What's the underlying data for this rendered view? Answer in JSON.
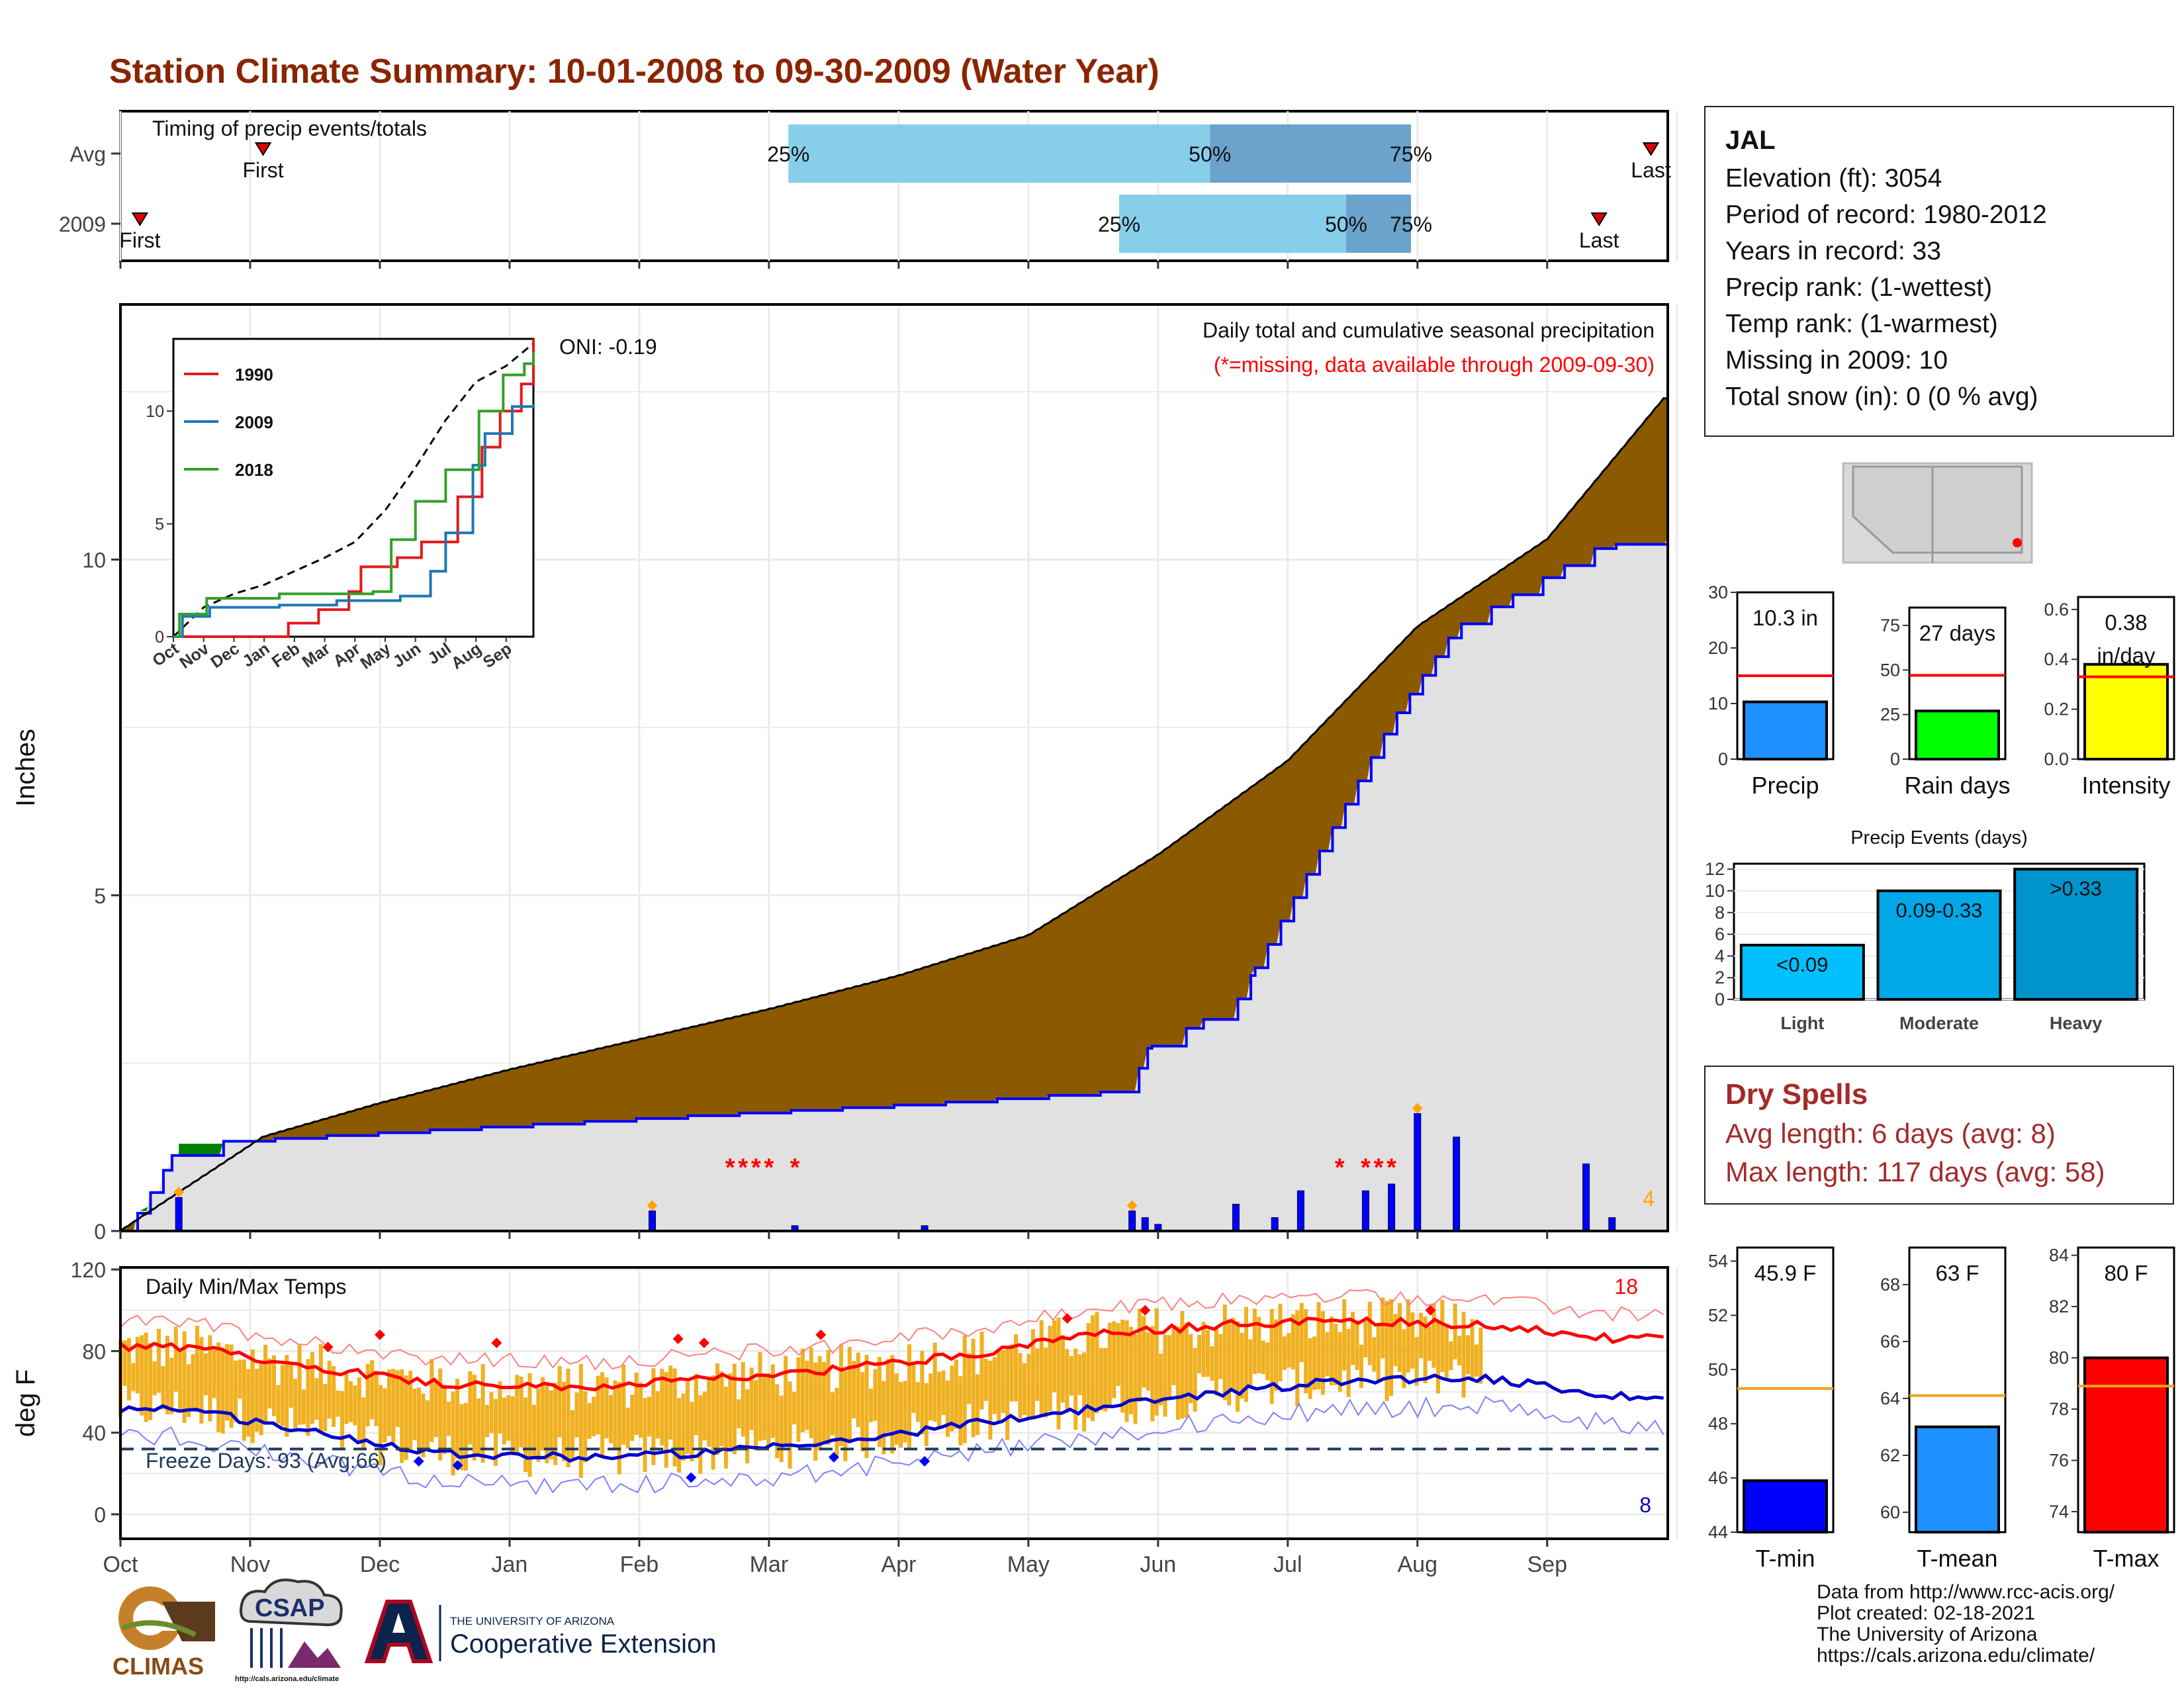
{
  "title": "Station Climate Summary: 10-01-2008 to 09-30-2009 (Water Year)",
  "colors": {
    "title": "#8b2500",
    "bar_light": "#87ceeb",
    "bar_dark": "#6ba3cc",
    "cumulative_above": "#8b5a00",
    "cumulative_below": "#008000",
    "cumulative_fill": "#e1e1e1",
    "daily_precip": "#0000ff",
    "missing": "#ff0000",
    "temp_bar": "#f0b020",
    "tmax": "#ff0000",
    "tmin": "#0000cc",
    "avg_line": "#f7a11a"
  },
  "timing": {
    "title": "Timing of precip events/totals",
    "rows": [
      {
        "label": "Avg",
        "first_label": "First",
        "last_label": "Last",
        "first_month": 1.1,
        "last_month": 11.8,
        "p25": 5.15,
        "p50": 8.4,
        "p75": 9.95,
        "labels": [
          "25%",
          "50%",
          "75%"
        ]
      },
      {
        "label": "2009",
        "first_label": "First",
        "last_label": "Last",
        "first_month": 0.15,
        "last_month": 11.4,
        "p25": 7.7,
        "p50": 9.45,
        "p75": 9.95,
        "labels": [
          "25%",
          "50%",
          "75%"
        ]
      }
    ]
  },
  "precip_chart": {
    "ylabel": "Inches",
    "yticks": [
      0,
      5,
      10
    ],
    "ylim": [
      0,
      13.8
    ],
    "oni": "ONI: -0.19",
    "caption1": "Daily total and cumulative seasonal precipitation",
    "caption2": "(*=missing, data available through 2009-09-30)",
    "count_label": "4",
    "missing_marker": "*"
  },
  "inset": {
    "yticks": [
      0,
      5,
      10
    ],
    "months": [
      "Oct",
      "Nov",
      "Dec",
      "Jan",
      "Feb",
      "Mar",
      "Apr",
      "May",
      "Jun",
      "Jul",
      "Aug",
      "Sep"
    ],
    "series": [
      {
        "name": "1990",
        "color": "#e31a1c"
      },
      {
        "name": "2009",
        "color": "#1f78b4"
      },
      {
        "name": "2018",
        "color": "#33a02c"
      }
    ]
  },
  "temp_chart": {
    "ylabel": "deg F",
    "title": "Daily Min/Max Temps",
    "yticks": [
      0,
      40,
      80,
      120
    ],
    "freeze_label": "Freeze Days: 93 (Avg:66)",
    "count_high": "18",
    "count_low": "8",
    "months": [
      "Oct",
      "Nov",
      "Dec",
      "Jan",
      "Feb",
      "Mar",
      "Apr",
      "May",
      "Jun",
      "Jul",
      "Aug",
      "Sep"
    ]
  },
  "station": {
    "name": "JAL",
    "lines": [
      "Elevation (ft): 3054",
      "Period of record: 1980-2012",
      "Years in record: 33",
      "Precip rank:  (1-wettest)",
      "Temp rank:  (1-warmest)",
      "Missing in 2009: 10",
      "Total snow (in): 0 (0 % avg)"
    ]
  },
  "summary_bars": [
    {
      "name": "Precip",
      "value_label": "10.3 in",
      "value": 10.3,
      "avg": 15,
      "ylim": [
        0,
        30
      ],
      "yticks": [
        "0",
        "10",
        "20",
        "30"
      ],
      "color": "#1e90ff"
    },
    {
      "name": "Rain days",
      "value_label": "27 days",
      "value": 27,
      "avg": 47,
      "ylim": [
        0,
        85
      ],
      "yticks": [
        "0",
        "25",
        "50",
        "75"
      ],
      "color": "#00ff00"
    },
    {
      "name": "Intensity",
      "value_label": "0.38\nin/day",
      "value": 0.38,
      "avg": 0.33,
      "ylim": [
        0,
        0.65
      ],
      "yticks": [
        "0.0",
        "0.2",
        "0.4",
        "0.6"
      ],
      "color": "#ffff00"
    }
  ],
  "events_chart": {
    "title": "Precip Events (days)",
    "yticks": [
      "0",
      "2",
      "4",
      "6",
      "8",
      "10",
      "12"
    ],
    "categories": [
      "Light",
      "Moderate",
      "Heavy"
    ],
    "labels": [
      "<0.09",
      "0.09-0.33",
      ">0.33"
    ],
    "values": [
      5,
      10,
      12
    ],
    "colors": [
      "#00bfff",
      "#00a8e8",
      "#0094cc"
    ]
  },
  "dry_spells": {
    "title": "Dry Spells",
    "avg_length": "Avg length: 6 days (avg: 8)",
    "max_length": "Max length: 117 days (avg: 58)"
  },
  "temp_bars": [
    {
      "name": "T-min",
      "value_label": "45.9 F",
      "value": 45.9,
      "avg": 49.3,
      "ylim": [
        44,
        54.5
      ],
      "yticks": [
        "44",
        "46",
        "48",
        "50",
        "52",
        "54"
      ],
      "color": "#0000ff"
    },
    {
      "name": "T-mean",
      "value_label": "63 F",
      "value": 63,
      "avg": 64.1,
      "ylim": [
        59.3,
        69.3
      ],
      "yticks": [
        "60",
        "62",
        "64",
        "66",
        "68"
      ],
      "color": "#1e90ff"
    },
    {
      "name": "T-max",
      "value_label": "80 F",
      "value": 80,
      "avg": 78.9,
      "ylim": [
        73.2,
        84.3
      ],
      "yticks": [
        "74",
        "76",
        "78",
        "80",
        "82",
        "84"
      ],
      "color": "#ff0000"
    }
  ],
  "credits": [
    "Data from http://www.rcc-acis.org/",
    "Plot created: 02-18-2021",
    "The University of Arizona",
    "https://cals.arizona.edu/climate/"
  ],
  "logos": {
    "climas": "CLIMAS",
    "csap": "CSAP",
    "csap_url": "http://cals.arizona.edu/climate",
    "ua_line1": "THE UNIVERSITY OF ARIZONA",
    "ua_line2": "Cooperative Extension"
  },
  "chart_data": [
    {
      "type": "area",
      "title": "Daily total and cumulative seasonal precipitation",
      "ylabel": "Inches",
      "ylim": [
        0,
        13.8
      ],
      "x_months": [
        "Oct",
        "Nov",
        "Dec",
        "Jan",
        "Feb",
        "Mar",
        "Apr",
        "May",
        "Jun",
        "Jul",
        "Aug",
        "Sep"
      ],
      "series": [
        {
          "name": "2009",
          "points": [
            [
              0,
              0
            ],
            [
              0.15,
              0.3
            ],
            [
              0.45,
              1.3
            ],
            [
              4.2,
              1.7
            ],
            [
              5.2,
              1.8
            ],
            [
              6.2,
              1.9
            ],
            [
              7.8,
              2.1
            ],
            [
              7.9,
              2.7
            ],
            [
              8.6,
              3.4
            ],
            [
              9.0,
              4.8
            ],
            [
              9.8,
              7.6
            ],
            [
              10.3,
              9.0
            ],
            [
              11.4,
              10.2
            ],
            [
              11.9,
              10.3
            ]
          ]
        },
        {
          "points": [
            [
              0,
              0
            ],
            [
              1.1,
              1.4
            ],
            [
              2.0,
              1.9
            ],
            [
              3.0,
              2.4
            ],
            [
              4.0,
              2.85
            ],
            [
              5.0,
              3.3
            ],
            [
              6.0,
              3.8
            ],
            [
              7.0,
              4.4
            ],
            [
              8.0,
              5.6
            ],
            [
              9.0,
              7.0
            ],
            [
              10.0,
              9.0
            ],
            [
              11.0,
              10.3
            ],
            [
              11.9,
              12.4
            ]
          ]
        }
      ],
      "daily_bars": [
        {
          "month": 0.45,
          "value": 0.5
        },
        {
          "month": 4.1,
          "value": 0.3
        },
        {
          "month": 5.2,
          "value": 0.08
        },
        {
          "month": 6.2,
          "value": 0.08
        },
        {
          "month": 7.8,
          "value": 0.3
        },
        {
          "month": 7.9,
          "value": 0.2
        },
        {
          "month": 8.0,
          "value": 0.1
        },
        {
          "month": 8.6,
          "value": 0.4
        },
        {
          "month": 8.9,
          "value": 0.2
        },
        {
          "month": 9.1,
          "value": 0.6
        },
        {
          "month": 9.6,
          "value": 0.6
        },
        {
          "month": 9.8,
          "value": 0.7
        },
        {
          "month": 10.0,
          "value": 1.75
        },
        {
          "month": 10.3,
          "value": 1.4
        },
        {
          "month": 11.3,
          "value": 1.0
        },
        {
          "month": 11.5,
          "value": 0.2
        }
      ]
    },
    {
      "type": "line",
      "title": "Daily Min/Max Temps",
      "ylabel": "deg F",
      "ylim": [
        -12,
        121
      ],
      "x_months": [
        "Oct",
        "Nov",
        "Dec",
        "Jan",
        "Feb",
        "Mar",
        "Apr",
        "May",
        "Jun",
        "Jul",
        "Aug",
        "Sep"
      ],
      "series": [
        {
          "name": "T-max",
          "monthly": [
            82,
            72,
            64,
            62,
            66,
            71,
            78,
            88,
            93,
            95,
            93,
            86
          ]
        },
        {
          "name": "T-min",
          "monthly": [
            52,
            40,
            30,
            28,
            30,
            35,
            44,
            52,
            60,
            66,
            67,
            58
          ]
        }
      ],
      "freeze_line": 32
    }
  ]
}
